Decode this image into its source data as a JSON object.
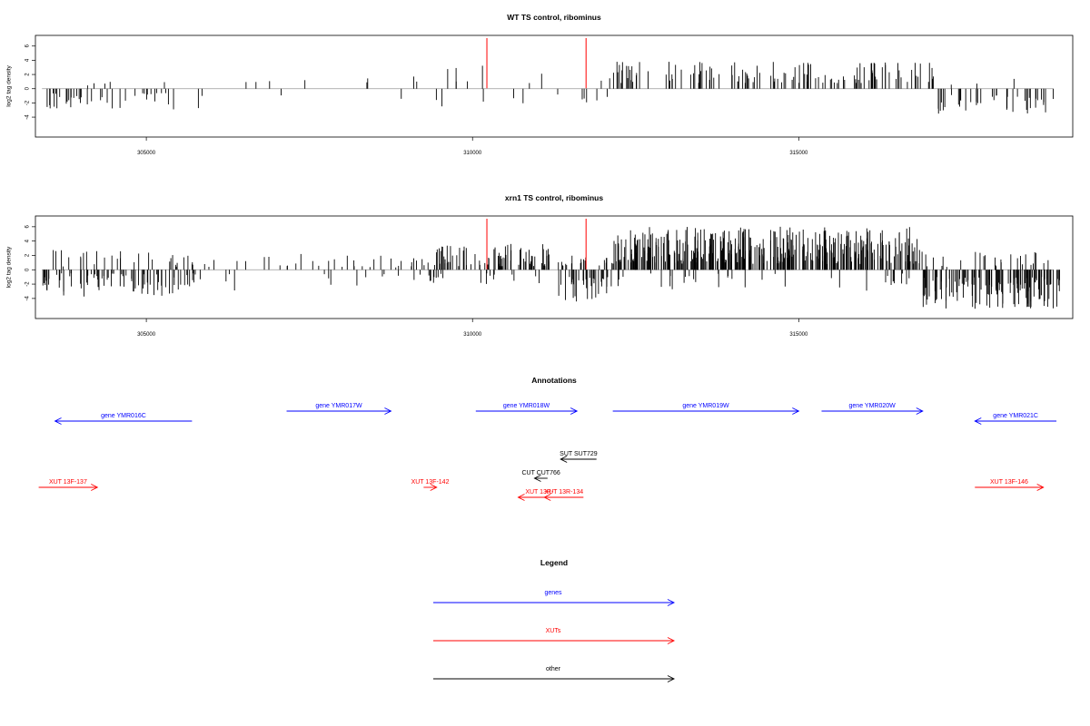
{
  "figure": {
    "annotations_title": "Annotations",
    "legend_title": "Legend"
  },
  "colors": {
    "gene": "#0000ff",
    "xut": "#ff0000",
    "other": "#000000",
    "marker": "#ff0000",
    "bar": "#000000",
    "baseline": "#999999"
  },
  "chart_data": [
    {
      "type": "bar",
      "title": "WT TS control, ribominus",
      "ylabel": "log2 tag density",
      "xlim": [
        303300,
        319200
      ],
      "ylim": [
        -6.8,
        7.5
      ],
      "yticks": [
        -4,
        -2,
        0,
        2,
        4,
        6
      ],
      "xticks": [
        305000,
        310000,
        315000
      ],
      "xtick_labels": [
        "305000",
        "310000",
        "315000"
      ],
      "markers": [
        310220,
        311740
      ],
      "seed": 11,
      "regions": [
        {
          "from": 303400,
          "to": 305900,
          "n": 45,
          "pos": [
            0.4,
            1.2
          ],
          "neg": [
            0.6,
            3.0
          ],
          "pneg": 0.85
        },
        {
          "from": 305900,
          "to": 308300,
          "n": 5,
          "pos": [
            0.5,
            1.6
          ],
          "neg": [
            0.8,
            2.5
          ],
          "pneg": 0.4
        },
        {
          "from": 308300,
          "to": 309400,
          "n": 5,
          "pos": [
            0.8,
            2.0
          ],
          "neg": [
            0.8,
            1.8
          ],
          "pneg": 0.4
        },
        {
          "from": 309400,
          "to": 311700,
          "n": 14,
          "pos": [
            0.5,
            3.3
          ],
          "neg": [
            0.8,
            2.5
          ],
          "pneg": 0.2
        },
        {
          "from": 311700,
          "to": 312100,
          "n": 5,
          "pos": [
            0.5,
            1.5
          ],
          "neg": [
            0.8,
            2.0
          ],
          "pneg": 0.75
        },
        {
          "from": 312100,
          "to": 317100,
          "n": 125,
          "pos": [
            0.8,
            3.8
          ],
          "neg": [
            0.5,
            1.5
          ],
          "pneg": 0.03
        },
        {
          "from": 317100,
          "to": 318900,
          "n": 42,
          "pos": [
            0.5,
            1.5
          ],
          "neg": [
            0.8,
            3.6
          ],
          "pneg": 0.92
        }
      ]
    },
    {
      "type": "bar",
      "title": "xrn1 TS control, ribominus",
      "ylabel": "log2 tag density",
      "xlim": [
        303300,
        319200
      ],
      "ylim": [
        -6.8,
        7.5
      ],
      "yticks": [
        -4,
        -2,
        0,
        2,
        4,
        6
      ],
      "xticks": [
        305000,
        310000,
        315000
      ],
      "xtick_labels": [
        "305000",
        "310000",
        "315000"
      ],
      "markers": [
        310220,
        311740
      ],
      "seed": 29,
      "regions": [
        {
          "from": 303400,
          "to": 305800,
          "n": 110,
          "pos": [
            0.4,
            2.8
          ],
          "neg": [
            0.5,
            3.8
          ],
          "pneg": 0.72
        },
        {
          "from": 305800,
          "to": 308400,
          "n": 30,
          "pos": [
            0.4,
            2.3
          ],
          "neg": [
            0.5,
            3.0
          ],
          "pneg": 0.3
        },
        {
          "from": 308400,
          "to": 309300,
          "n": 18,
          "pos": [
            0.3,
            2.0
          ],
          "neg": [
            0.5,
            1.5
          ],
          "pneg": 0.3
        },
        {
          "from": 309300,
          "to": 311300,
          "n": 100,
          "pos": [
            0.5,
            3.6
          ],
          "neg": [
            0.5,
            2.5
          ],
          "pneg": 0.18
        },
        {
          "from": 311300,
          "to": 312100,
          "n": 55,
          "pos": [
            0.5,
            2.0
          ],
          "neg": [
            1.0,
            4.5
          ],
          "pneg": 0.7
        },
        {
          "from": 312100,
          "to": 316900,
          "n": 420,
          "pos": [
            0.8,
            6.0
          ],
          "neg": [
            0.5,
            3.0
          ],
          "pneg": 0.1
        },
        {
          "from": 316900,
          "to": 319000,
          "n": 160,
          "pos": [
            0.4,
            2.5
          ],
          "neg": [
            1.0,
            5.5
          ],
          "pneg": 0.82
        }
      ]
    }
  ],
  "annotations": [
    {
      "label": "gene YMR016C",
      "kind": "gene",
      "start": 305700,
      "end": 303600,
      "row": 1
    },
    {
      "label": "gene YMR017W",
      "kind": "gene",
      "start": 307150,
      "end": 308750,
      "row": 0
    },
    {
      "label": "gene YMR018W",
      "kind": "gene",
      "start": 310050,
      "end": 311600,
      "row": 0
    },
    {
      "label": "gene YMR019W",
      "kind": "gene",
      "start": 312150,
      "end": 315000,
      "row": 0
    },
    {
      "label": "gene YMR020W",
      "kind": "gene",
      "start": 315350,
      "end": 316900,
      "row": 0
    },
    {
      "label": "gene YMR021C",
      "kind": "gene",
      "start": 318950,
      "end": 317700,
      "row": 1
    },
    {
      "label": "SUT SUT729",
      "kind": "other",
      "start": 311900,
      "end": 311350,
      "row": 2
    },
    {
      "label": "CUT CUT766",
      "kind": "other",
      "start": 311150,
      "end": 310950,
      "row": 3
    },
    {
      "label": "XUT 13F-137",
      "kind": "xut",
      "start": 303350,
      "end": 304250,
      "row": 4
    },
    {
      "label": "XUT 13F-142",
      "kind": "xut",
      "start": 309250,
      "end": 309450,
      "row": 4
    },
    {
      "label": "XUT 13R-",
      "kind": "xut",
      "start": 311350,
      "end": 310700,
      "row": 5
    },
    {
      "label": "XUT 13R-134",
      "kind": "xut",
      "start": 311700,
      "end": 311100,
      "row": 5
    },
    {
      "label": "XUT 13F-146",
      "kind": "xut",
      "start": 317700,
      "end": 318750,
      "row": 4
    }
  ],
  "legend": [
    {
      "label": "genes",
      "kind": "gene"
    },
    {
      "label": "XUTs",
      "kind": "xut"
    },
    {
      "label": "other",
      "kind": "other"
    }
  ]
}
